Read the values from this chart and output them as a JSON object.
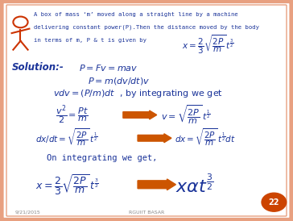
{
  "bg_color": "#ffffff",
  "border_color": "#e8a080",
  "slide_number": "22",
  "slide_number_color": "#cc4400",
  "footer_left": "9/21/2015",
  "footer_center": "RGUIIT BASAR",
  "title_color": "#1a3399",
  "solution_color": "#1a3399",
  "arrow_color": "#cc5500",
  "logo_color": "#cc3300",
  "footer_color": "#888888"
}
